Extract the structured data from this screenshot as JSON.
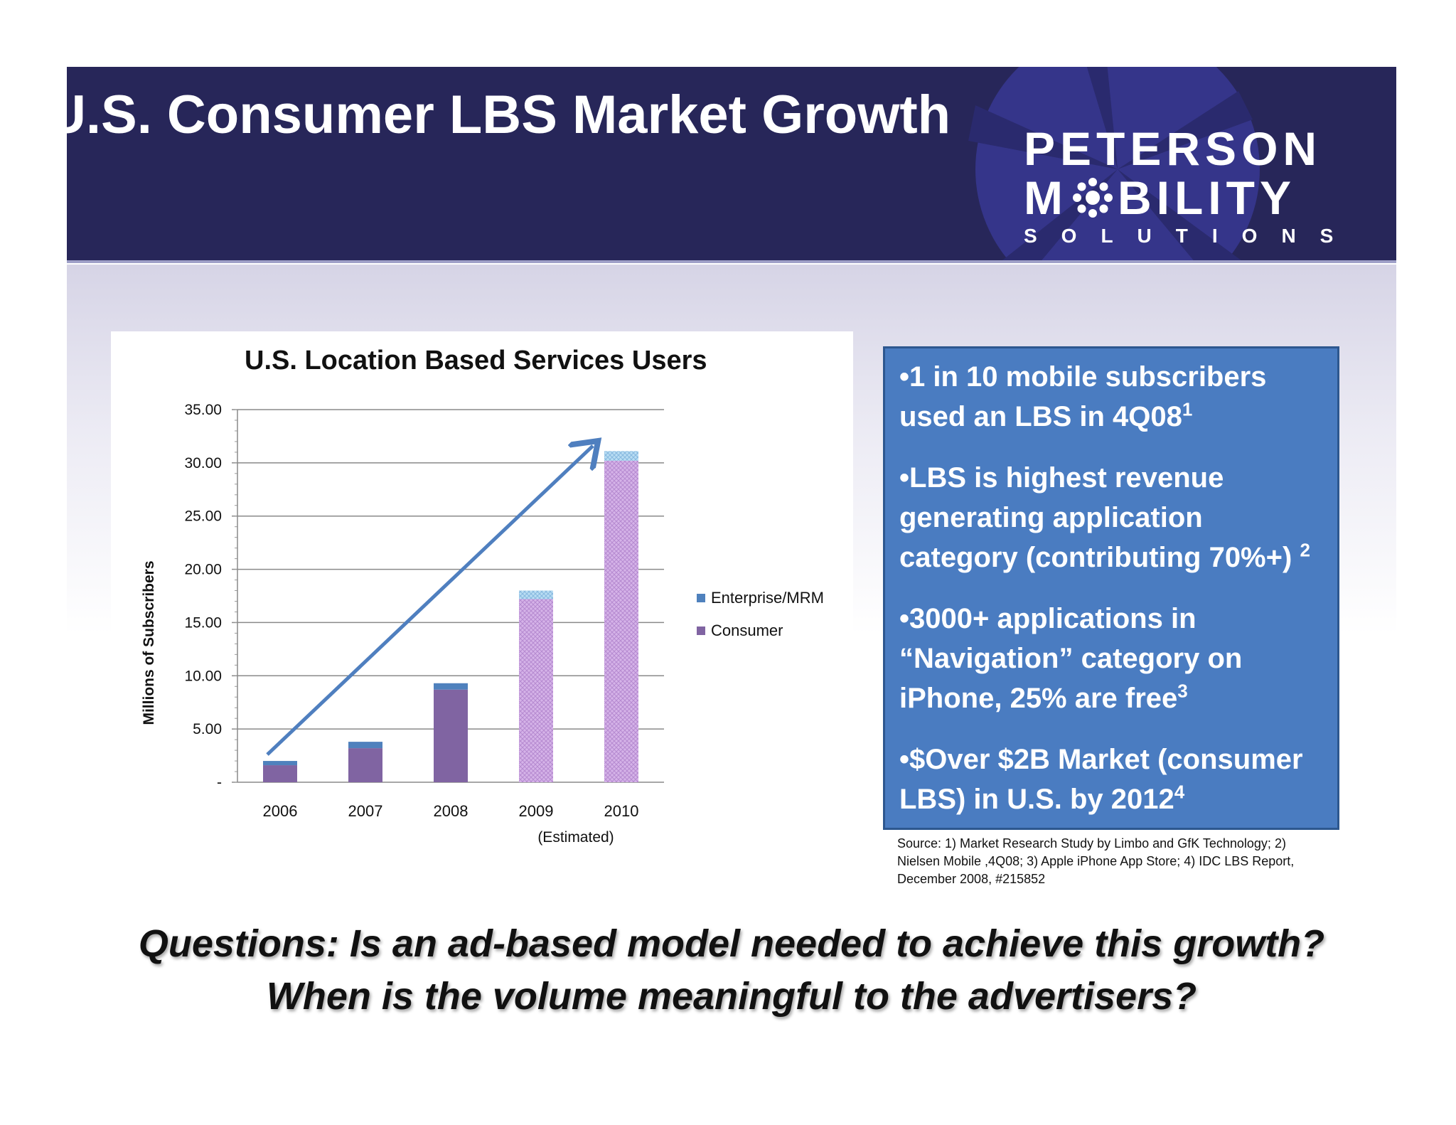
{
  "header": {
    "title": "U.S. Consumer LBS Market Growth",
    "logo": {
      "line1": "PETERSON",
      "line2_prefix": "M",
      "line2_suffix": "BILITY",
      "line3": "SOLUTIONS"
    }
  },
  "colors": {
    "header_bg": "#272659",
    "consumer": "#8064a2",
    "enterprise": "#4f81bd",
    "estimated_fill": "#c9a6de",
    "estimated_enterprise": "#a9d1ee",
    "info_box": "#4a7cc1",
    "arrow": "#4f7fbf"
  },
  "chart_data": {
    "type": "bar",
    "stacked": true,
    "title": "U.S. Location Based Services Users",
    "ylabel": "Millions of Subscribers",
    "xlabel": "",
    "ylim": [
      0,
      35
    ],
    "yticks": [
      "-",
      "5.00",
      "10.00",
      "15.00",
      "20.00",
      "25.00",
      "30.00",
      "35.00"
    ],
    "categories": [
      "2006",
      "2007",
      "2008",
      "2009",
      "2010"
    ],
    "category_note": "(Estimated)",
    "series": [
      {
        "name": "Consumer",
        "values": [
          1.6,
          3.2,
          8.7,
          17.2,
          30.2
        ]
      },
      {
        "name": "Enterprise/MRM",
        "values": [
          0.4,
          0.6,
          0.6,
          0.8,
          0.9
        ]
      }
    ],
    "estimated_from_index": 3,
    "legend": [
      "Enterprise/MRM",
      "Consumer"
    ],
    "legend_position": "right",
    "annotation": "trend arrow from 2006 to 2010"
  },
  "info_box": {
    "bullet1": "•1 in 10 mobile subscribers used an LBS in 4Q08",
    "bullet1_sup": "1",
    "bullet2": "•LBS is highest revenue generating application category (contributing 70%+)",
    "bullet2_sup": "2",
    "bullet3": "•3000+ applications in “Navigation” category on iPhone, 25% are free",
    "bullet3_sup": "3",
    "bullet4": "•$Over $2B Market (consumer LBS) in U.S. by 2012",
    "bullet4_sup": "4"
  },
  "source": "Source: 1) Market Research Study by Limbo and GfK Technology; 2) Nielsen Mobile ,4Q08; 3) Apple iPhone App Store; 4) IDC LBS Report, December 2008, #215852",
  "questions": {
    "line1": "Questions: Is an ad-based model needed to achieve this growth?",
    "line2": "When is the volume meaningful to the advertisers?"
  }
}
